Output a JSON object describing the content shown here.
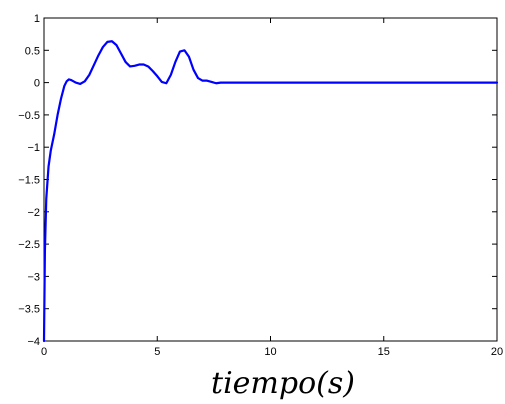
{
  "chart_data": {
    "type": "line",
    "title": "",
    "xlabel": "tiempo(s)",
    "ylabel": "",
    "xlim": [
      0,
      20
    ],
    "ylim": [
      -4,
      1
    ],
    "xticks": [
      0,
      5,
      10,
      15,
      20
    ],
    "xtick_labels": [
      "0",
      "5",
      "10",
      "15",
      "20"
    ],
    "yticks": [
      1,
      0.5,
      0,
      -0.5,
      -1,
      -1.5,
      -2,
      -2.5,
      -3,
      -3.5,
      -4
    ],
    "ytick_labels": [
      "1",
      "0.5",
      "0",
      "−0.5",
      "−1",
      "−1.5",
      "−2",
      "−2.5",
      "−3",
      "−3.5",
      "−4"
    ],
    "grid": false,
    "line_color": "#0000ff",
    "series": [
      {
        "x": [
          0,
          0.04,
          0.1,
          0.2,
          0.3,
          0.45,
          0.6,
          0.75,
          0.9,
          1.0,
          1.1,
          1.2,
          1.4,
          1.6,
          1.8,
          2.0,
          2.2,
          2.4,
          2.6,
          2.8,
          3.0,
          3.2,
          3.4,
          3.6,
          3.8,
          4.0,
          4.2,
          4.4,
          4.6,
          4.8,
          5.0,
          5.2,
          5.4,
          5.6,
          5.8,
          6.0,
          6.2,
          6.4,
          6.6,
          6.8,
          7.0,
          7.2,
          7.4,
          7.6,
          7.8,
          8.0,
          8.2,
          8.4,
          8.6,
          8.8,
          9.0,
          9.5,
          10,
          11,
          12,
          13,
          14,
          15,
          16,
          17,
          18,
          19,
          20
        ],
        "y": [
          -4.0,
          -2.6,
          -1.8,
          -1.3,
          -1.05,
          -0.8,
          -0.5,
          -0.25,
          -0.05,
          0.02,
          0.05,
          0.04,
          0.0,
          -0.02,
          0.02,
          0.12,
          0.27,
          0.42,
          0.55,
          0.63,
          0.64,
          0.58,
          0.45,
          0.32,
          0.25,
          0.26,
          0.28,
          0.28,
          0.25,
          0.18,
          0.1,
          0.01,
          -0.01,
          0.12,
          0.32,
          0.48,
          0.5,
          0.4,
          0.2,
          0.07,
          0.03,
          0.03,
          0.01,
          -0.01,
          0.0,
          0.0,
          0.0,
          0.0,
          0.0,
          0.0,
          0.0,
          0.0,
          0.0,
          0.0,
          0.0,
          0.0,
          0.0,
          0.0,
          0.0,
          0.0,
          0.0,
          0.0,
          0.0
        ]
      }
    ]
  }
}
